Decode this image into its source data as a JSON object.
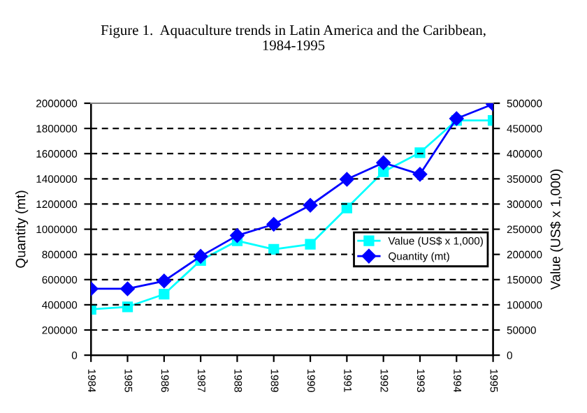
{
  "chart_data": {
    "type": "line",
    "title": "Figure 1.  Aquaculture trends in Latin America and the Caribbean,\n1984-1995",
    "categories": [
      "1984",
      "1985",
      "1986",
      "1987",
      "1988",
      "1989",
      "1990",
      "1991",
      "1992",
      "1993",
      "1994",
      "1995"
    ],
    "series": [
      {
        "name": "Value (US$ x 1,000)",
        "color": "#00ffff",
        "marker": "square",
        "axis": "y2",
        "values": [
          91000,
          96000,
          121000,
          188000,
          227000,
          210000,
          220000,
          292000,
          364000,
          402000,
          466000,
          466000
        ]
      },
      {
        "name": "Quantity (mt)",
        "color": "#0000ff",
        "marker": "diamond",
        "values": [
          527000,
          527000,
          589000,
          785000,
          950000,
          1039000,
          1190000,
          1396000,
          1528000,
          1436000,
          1878000,
          1993000
        ]
      }
    ],
    "ylabel": "Quantity (mt)",
    "y2label": "Value (US$ x 1,000)",
    "ylim": [
      0,
      2000000
    ],
    "yticks": [
      0,
      200000,
      400000,
      600000,
      800000,
      1000000,
      1200000,
      1400000,
      1600000,
      1800000,
      2000000
    ],
    "y2lim": [
      0,
      500000
    ],
    "y2ticks": [
      0,
      50000,
      100000,
      150000,
      200000,
      250000,
      300000,
      350000,
      400000,
      450000,
      500000
    ],
    "grid": "y",
    "line_style": "solid",
    "legend": "right"
  }
}
